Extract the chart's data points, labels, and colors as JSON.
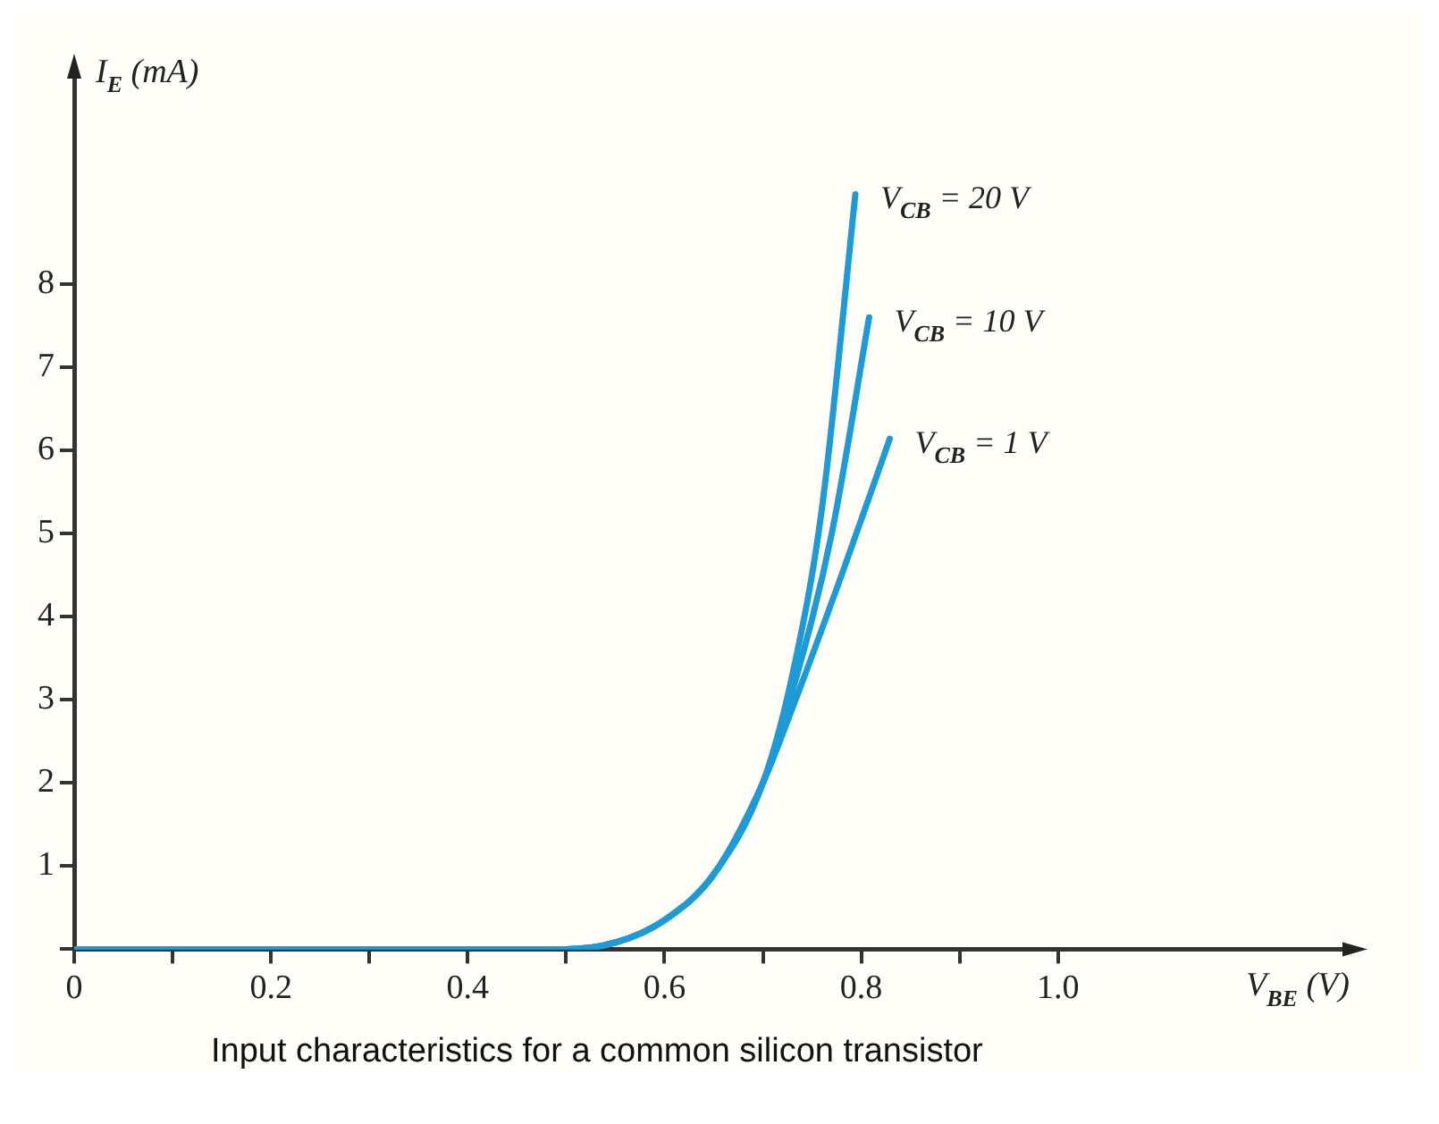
{
  "chart_data": {
    "type": "line",
    "xlabel": "V$_{BE}$ (V)",
    "ylabel": "I$_{E}$ (mA)",
    "annotations": [
      "Input characteristics for a common silicon transistor"
    ],
    "xlim": [
      0,
      1.3
    ],
    "ylim": [
      0,
      10.6
    ],
    "xticks": [
      0,
      {
        "value": 0.1,
        "label": null
      },
      0.2,
      {
        "value": 0.3,
        "label": null
      },
      0.4,
      {
        "value": 0.5,
        "label": null
      },
      0.6,
      {
        "value": 0.7,
        "label": null
      },
      0.8,
      {
        "value": 0.9,
        "label": null
      },
      {
        "value": 1,
        "label": "1.0"
      }
    ],
    "yticks": [
      {
        "value": 0,
        "label": null
      },
      1,
      2,
      3,
      4,
      5,
      6,
      7,
      8
    ],
    "grid": false,
    "legend": false,
    "marker": "none",
    "line_style": "solid",
    "series": [
      {
        "name": "V$_{CB}$ = 20 V",
        "color": "#1e9ad6",
        "x": [
          0,
          0.5,
          0.55,
          0.6,
          0.65,
          0.7,
          0.73,
          0.76,
          0.794
        ],
        "values": [
          0,
          0,
          0.08,
          0.35,
          0.9,
          2.0,
          3.3,
          5.3,
          9.08
        ]
      },
      {
        "name": "V$_{CB}$ = 10 V",
        "color": "#1e9ad6",
        "x": [
          0,
          0.5,
          0.55,
          0.6,
          0.65,
          0.7,
          0.73,
          0.77,
          0.808
        ],
        "values": [
          0,
          0,
          0.08,
          0.35,
          0.9,
          2.0,
          3.1,
          5.0,
          7.6
        ]
      },
      {
        "name": "V$_{CB}$ = 1 V",
        "color": "#1e9ad6",
        "x": [
          0,
          0.5,
          0.55,
          0.6,
          0.65,
          0.7,
          0.73,
          0.78,
          0.829
        ],
        "values": [
          0,
          0,
          0.08,
          0.35,
          0.9,
          2.0,
          2.9,
          4.5,
          6.14
        ]
      }
    ]
  }
}
